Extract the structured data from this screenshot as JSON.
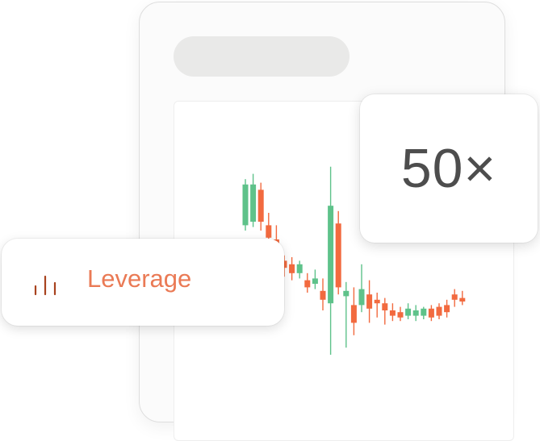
{
  "badge": {
    "value": "50×"
  },
  "chip": {
    "label": "Leverage",
    "icon": "bar-chart-icon"
  },
  "colors": {
    "up": "#5ec28a",
    "down": "#f26a3f",
    "label": "#ea7a55",
    "icon": "#a8431f"
  },
  "candles": [
    {
      "dir": "up",
      "open": 0.53,
      "close": 0.76,
      "high": 0.79,
      "low": 0.5
    },
    {
      "dir": "up",
      "open": 0.55,
      "close": 0.76,
      "high": 0.82,
      "low": 0.52
    },
    {
      "dir": "down",
      "open": 0.73,
      "close": 0.55,
      "high": 0.77,
      "low": 0.5
    },
    {
      "dir": "down",
      "open": 0.53,
      "close": 0.46,
      "high": 0.6,
      "low": 0.42
    },
    {
      "dir": "down",
      "open": 0.45,
      "close": 0.41,
      "high": 0.53,
      "low": 0.38
    },
    {
      "dir": "down",
      "open": 0.33,
      "close": 0.29,
      "high": 0.36,
      "low": 0.24
    },
    {
      "dir": "down",
      "open": 0.31,
      "close": 0.26,
      "high": 0.35,
      "low": 0.22
    },
    {
      "dir": "up",
      "open": 0.26,
      "close": 0.31,
      "high": 0.33,
      "low": 0.23
    },
    {
      "dir": "down",
      "open": 0.22,
      "close": 0.18,
      "high": 0.26,
      "low": 0.15
    },
    {
      "dir": "up",
      "open": 0.2,
      "close": 0.23,
      "high": 0.28,
      "low": 0.17
    },
    {
      "dir": "down",
      "open": 0.16,
      "close": 0.11,
      "high": 0.23,
      "low": 0.05
    },
    {
      "dir": "up",
      "open": 0.09,
      "close": 0.64,
      "high": 0.86,
      "low": -0.2
    },
    {
      "dir": "down",
      "open": 0.54,
      "close": 0.18,
      "high": 0.61,
      "low": 0.14
    },
    {
      "dir": "up",
      "open": 0.13,
      "close": 0.16,
      "high": 0.21,
      "low": -0.16
    },
    {
      "dir": "down",
      "open": 0.08,
      "close": -0.02,
      "high": 0.18,
      "low": -0.09
    },
    {
      "dir": "up",
      "open": 0.08,
      "close": 0.17,
      "high": 0.31,
      "low": 0.04
    },
    {
      "dir": "down",
      "open": 0.14,
      "close": 0.06,
      "high": 0.22,
      "low": -0.02
    },
    {
      "dir": "down",
      "open": 0.11,
      "close": 0.09,
      "high": 0.15,
      "low": 0.01
    },
    {
      "dir": "down",
      "open": 0.09,
      "close": 0.05,
      "high": 0.12,
      "low": -0.03
    },
    {
      "dir": "down",
      "open": 0.05,
      "close": 0.02,
      "high": 0.09,
      "low": -0.01
    },
    {
      "dir": "down",
      "open": 0.04,
      "close": 0.01,
      "high": 0.07,
      "low": -0.01
    },
    {
      "dir": "up",
      "open": 0.02,
      "close": 0.06,
      "high": 0.09,
      "low": 0.0
    },
    {
      "dir": "up",
      "open": 0.02,
      "close": 0.05,
      "high": 0.08,
      "low": -0.01
    },
    {
      "dir": "up",
      "open": 0.02,
      "close": 0.06,
      "high": 0.07,
      "low": 0.0
    },
    {
      "dir": "down",
      "open": 0.06,
      "close": 0.01,
      "high": 0.08,
      "low": -0.01
    },
    {
      "dir": "down",
      "open": 0.07,
      "close": 0.02,
      "high": 0.09,
      "low": 0.0
    },
    {
      "dir": "down",
      "open": 0.08,
      "close": 0.04,
      "high": 0.11,
      "low": 0.01
    },
    {
      "dir": "down",
      "open": 0.14,
      "close": 0.11,
      "high": 0.17,
      "low": 0.07
    },
    {
      "dir": "down",
      "open": 0.12,
      "close": 0.1,
      "high": 0.16,
      "low": 0.08
    }
  ]
}
